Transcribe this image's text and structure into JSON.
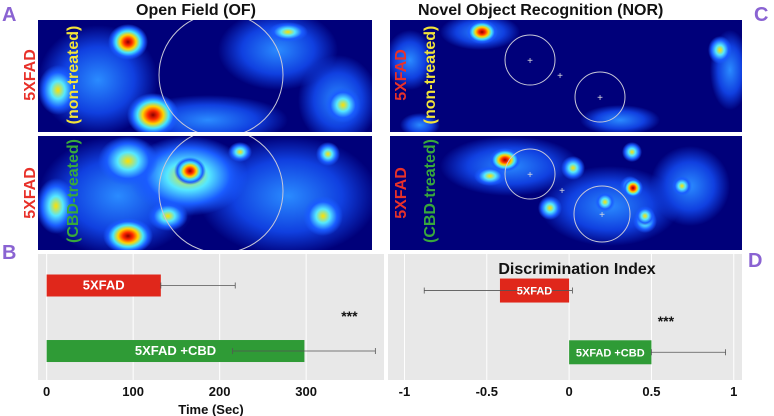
{
  "panels": {
    "a": "A",
    "b": "B",
    "c": "C",
    "d": "D"
  },
  "titles": {
    "of": "Open Field (OF)",
    "nor": "Novel Object Recognition (NOR)"
  },
  "row_labels": {
    "strain": "5XFAD",
    "non_treated": "(non-treated)",
    "cbd_treated": "(CBD-treated)"
  },
  "colors": {
    "label_red": "#e8312a",
    "label_yellow": "#f2e43a",
    "label_green": "#38a83c",
    "bar_red": "#e0271b",
    "bar_green": "#2f9b36",
    "panel_bg": "#e8e8e8",
    "heatmap_bg": "#00007a"
  },
  "chart_data": [
    {
      "type": "bar",
      "orientation": "horizontal",
      "panel": "B",
      "categories": [
        "5XFAD",
        "5XFAD +CBD"
      ],
      "values": [
        132,
        298
      ],
      "error_upper": [
        218,
        380
      ],
      "error_lower": [
        132,
        215
      ],
      "xlabel": "Time (Sec)",
      "xlim": [
        -10,
        390
      ],
      "xticks": [
        0,
        100,
        200,
        300
      ],
      "significance": "***",
      "grid": true
    },
    {
      "type": "bar",
      "orientation": "horizontal",
      "panel": "D",
      "title": "Discrimination Index",
      "categories": [
        "5XFAD",
        "5XFAD +CBD"
      ],
      "values": [
        -0.42,
        0.5
      ],
      "error_lower": [
        -0.88,
        0.5
      ],
      "error_upper": [
        0.02,
        0.95
      ],
      "xlim": [
        -1.1,
        1.05
      ],
      "xticks": [
        -1,
        -0.5,
        0,
        0.5,
        1
      ],
      "significance": "***",
      "grid": true
    }
  ]
}
